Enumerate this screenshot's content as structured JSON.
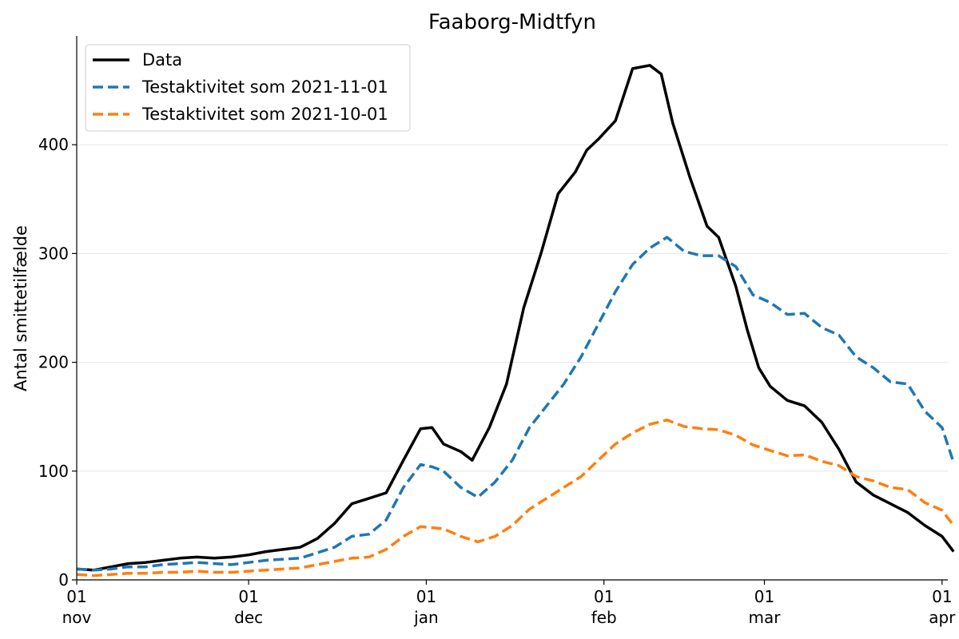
{
  "chart_data": {
    "type": "line",
    "title": "Faaborg-Midtfyn",
    "xlabel": "",
    "ylabel": "Antal smittetilfælde",
    "x_start": "2021-11-01",
    "x_end": "2022-04-01",
    "xlim": [
      "2021-11-01",
      "2022-04-02"
    ],
    "ylim": [
      0,
      500
    ],
    "yticks": [
      0,
      100,
      200,
      300,
      400
    ],
    "xticks": [
      {
        "date": "2021-11-01",
        "day": "01",
        "month": "nov"
      },
      {
        "date": "2021-12-01",
        "day": "01",
        "month": "dec"
      },
      {
        "date": "2022-01-01",
        "day": "01",
        "month": "jan"
      },
      {
        "date": "2022-02-01",
        "day": "01",
        "month": "feb"
      },
      {
        "date": "2022-03-01",
        "day": "01",
        "month": "mar"
      },
      {
        "date": "2022-04-01",
        "day": "01",
        "month": "apr"
      }
    ],
    "grid": "horizontal",
    "legend_position": "top-left",
    "series": [
      {
        "name": "Data",
        "color": "#000000",
        "style": "solid",
        "points": [
          [
            "2021-11-01",
            10
          ],
          [
            "2021-11-04",
            9
          ],
          [
            "2021-11-07",
            12
          ],
          [
            "2021-11-10",
            15
          ],
          [
            "2021-11-13",
            16
          ],
          [
            "2021-11-16",
            18
          ],
          [
            "2021-11-19",
            20
          ],
          [
            "2021-11-22",
            21
          ],
          [
            "2021-11-25",
            20
          ],
          [
            "2021-11-28",
            21
          ],
          [
            "2021-12-01",
            23
          ],
          [
            "2021-12-04",
            26
          ],
          [
            "2021-12-07",
            28
          ],
          [
            "2021-12-10",
            30
          ],
          [
            "2021-12-13",
            38
          ],
          [
            "2021-12-16",
            52
          ],
          [
            "2021-12-19",
            70
          ],
          [
            "2021-12-22",
            75
          ],
          [
            "2021-12-25",
            80
          ],
          [
            "2021-12-28",
            110
          ],
          [
            "2021-12-31",
            139
          ],
          [
            "2022-01-02",
            140
          ],
          [
            "2022-01-04",
            125
          ],
          [
            "2022-01-07",
            118
          ],
          [
            "2022-01-09",
            110
          ],
          [
            "2022-01-12",
            140
          ],
          [
            "2022-01-15",
            180
          ],
          [
            "2022-01-18",
            250
          ],
          [
            "2022-01-21",
            300
          ],
          [
            "2022-01-24",
            355
          ],
          [
            "2022-01-27",
            375
          ],
          [
            "2022-01-29",
            395
          ],
          [
            "2022-01-31",
            405
          ],
          [
            "2022-02-03",
            422
          ],
          [
            "2022-02-06",
            470
          ],
          [
            "2022-02-09",
            473
          ],
          [
            "2022-02-11",
            465
          ],
          [
            "2022-02-13",
            420
          ],
          [
            "2022-02-16",
            370
          ],
          [
            "2022-02-19",
            325
          ],
          [
            "2022-02-21",
            315
          ],
          [
            "2022-02-24",
            270
          ],
          [
            "2022-02-26",
            230
          ],
          [
            "2022-02-28",
            195
          ],
          [
            "2022-03-02",
            178
          ],
          [
            "2022-03-05",
            165
          ],
          [
            "2022-03-08",
            160
          ],
          [
            "2022-03-11",
            145
          ],
          [
            "2022-03-14",
            120
          ],
          [
            "2022-03-17",
            90
          ],
          [
            "2022-03-20",
            78
          ],
          [
            "2022-03-23",
            70
          ],
          [
            "2022-03-26",
            62
          ],
          [
            "2022-03-29",
            50
          ],
          [
            "2022-04-01",
            40
          ],
          [
            "2022-04-03",
            26
          ]
        ]
      },
      {
        "name": "Testaktivitet som 2021-11-01",
        "color": "#1f77b4",
        "style": "dashed",
        "points": [
          [
            "2021-11-01",
            10
          ],
          [
            "2021-11-04",
            9
          ],
          [
            "2021-11-07",
            10
          ],
          [
            "2021-11-10",
            12
          ],
          [
            "2021-11-13",
            12
          ],
          [
            "2021-11-16",
            14
          ],
          [
            "2021-11-19",
            15
          ],
          [
            "2021-11-22",
            16
          ],
          [
            "2021-11-25",
            15
          ],
          [
            "2021-11-28",
            14
          ],
          [
            "2021-12-01",
            16
          ],
          [
            "2021-12-04",
            18
          ],
          [
            "2021-12-07",
            19
          ],
          [
            "2021-12-10",
            20
          ],
          [
            "2021-12-13",
            25
          ],
          [
            "2021-12-16",
            30
          ],
          [
            "2021-12-19",
            40
          ],
          [
            "2021-12-22",
            42
          ],
          [
            "2021-12-25",
            55
          ],
          [
            "2021-12-28",
            85
          ],
          [
            "2021-12-31",
            106
          ],
          [
            "2022-01-02",
            104
          ],
          [
            "2022-01-04",
            100
          ],
          [
            "2022-01-07",
            85
          ],
          [
            "2022-01-10",
            76
          ],
          [
            "2022-01-13",
            90
          ],
          [
            "2022-01-16",
            110
          ],
          [
            "2022-01-19",
            140
          ],
          [
            "2022-01-22",
            160
          ],
          [
            "2022-01-25",
            180
          ],
          [
            "2022-01-28",
            205
          ],
          [
            "2022-01-31",
            235
          ],
          [
            "2022-02-03",
            265
          ],
          [
            "2022-02-06",
            290
          ],
          [
            "2022-02-09",
            305
          ],
          [
            "2022-02-12",
            315
          ],
          [
            "2022-02-15",
            302
          ],
          [
            "2022-02-18",
            298
          ],
          [
            "2022-02-21",
            298
          ],
          [
            "2022-02-24",
            288
          ],
          [
            "2022-02-27",
            262
          ],
          [
            "2022-03-02",
            255
          ],
          [
            "2022-03-05",
            244
          ],
          [
            "2022-03-08",
            245
          ],
          [
            "2022-03-11",
            232
          ],
          [
            "2022-03-14",
            225
          ],
          [
            "2022-03-17",
            205
          ],
          [
            "2022-03-20",
            195
          ],
          [
            "2022-03-23",
            182
          ],
          [
            "2022-03-26",
            180
          ],
          [
            "2022-03-29",
            155
          ],
          [
            "2022-04-01",
            140
          ],
          [
            "2022-04-03",
            108
          ]
        ]
      },
      {
        "name": "Testaktivitet som 2021-10-01",
        "color": "#ff7f0e",
        "style": "dashed",
        "points": [
          [
            "2021-11-01",
            5
          ],
          [
            "2021-11-04",
            4
          ],
          [
            "2021-11-07",
            5
          ],
          [
            "2021-11-10",
            6
          ],
          [
            "2021-11-13",
            6
          ],
          [
            "2021-11-16",
            7
          ],
          [
            "2021-11-19",
            7
          ],
          [
            "2021-11-22",
            8
          ],
          [
            "2021-11-25",
            7
          ],
          [
            "2021-11-28",
            7
          ],
          [
            "2021-12-01",
            8
          ],
          [
            "2021-12-04",
            9
          ],
          [
            "2021-12-07",
            10
          ],
          [
            "2021-12-10",
            11
          ],
          [
            "2021-12-13",
            14
          ],
          [
            "2021-12-16",
            17
          ],
          [
            "2021-12-19",
            20
          ],
          [
            "2021-12-22",
            21
          ],
          [
            "2021-12-25",
            28
          ],
          [
            "2021-12-28",
            40
          ],
          [
            "2021-12-31",
            49
          ],
          [
            "2022-01-02",
            48
          ],
          [
            "2022-01-04",
            47
          ],
          [
            "2022-01-07",
            40
          ],
          [
            "2022-01-10",
            35
          ],
          [
            "2022-01-13",
            40
          ],
          [
            "2022-01-16",
            50
          ],
          [
            "2022-01-19",
            65
          ],
          [
            "2022-01-22",
            75
          ],
          [
            "2022-01-25",
            85
          ],
          [
            "2022-01-28",
            95
          ],
          [
            "2022-01-31",
            110
          ],
          [
            "2022-02-03",
            125
          ],
          [
            "2022-02-06",
            135
          ],
          [
            "2022-02-09",
            143
          ],
          [
            "2022-02-12",
            147
          ],
          [
            "2022-02-15",
            141
          ],
          [
            "2022-02-18",
            139
          ],
          [
            "2022-02-21",
            138
          ],
          [
            "2022-02-24",
            133
          ],
          [
            "2022-02-27",
            124
          ],
          [
            "2022-03-02",
            119
          ],
          [
            "2022-03-05",
            114
          ],
          [
            "2022-03-08",
            115
          ],
          [
            "2022-03-11",
            109
          ],
          [
            "2022-03-14",
            105
          ],
          [
            "2022-03-17",
            95
          ],
          [
            "2022-03-20",
            91
          ],
          [
            "2022-03-23",
            85
          ],
          [
            "2022-03-26",
            83
          ],
          [
            "2022-03-29",
            71
          ],
          [
            "2022-04-01",
            64
          ],
          [
            "2022-04-03",
            50
          ]
        ]
      }
    ]
  }
}
